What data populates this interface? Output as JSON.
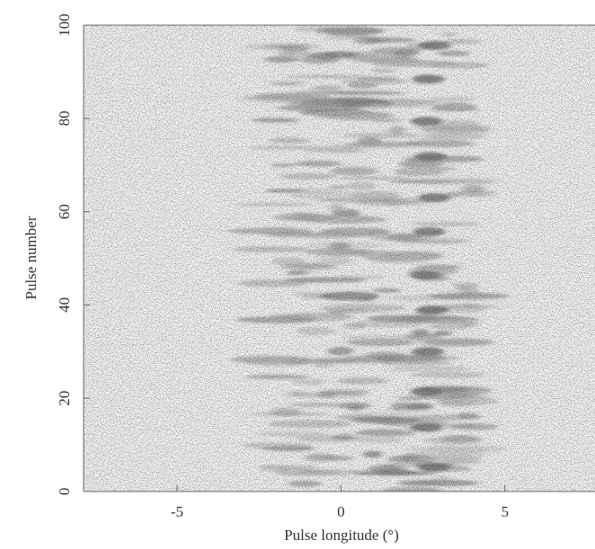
{
  "chart_data": {
    "type": "image",
    "xlabel": "Pulse longitude (°)",
    "ylabel": "Pulse number",
    "xlim": [
      -7.85,
      7.75
    ],
    "ylim": [
      0,
      100
    ],
    "xticks": [
      -5,
      0,
      5
    ],
    "yticks": [
      0,
      20,
      40,
      60,
      80,
      100
    ]
  }
}
